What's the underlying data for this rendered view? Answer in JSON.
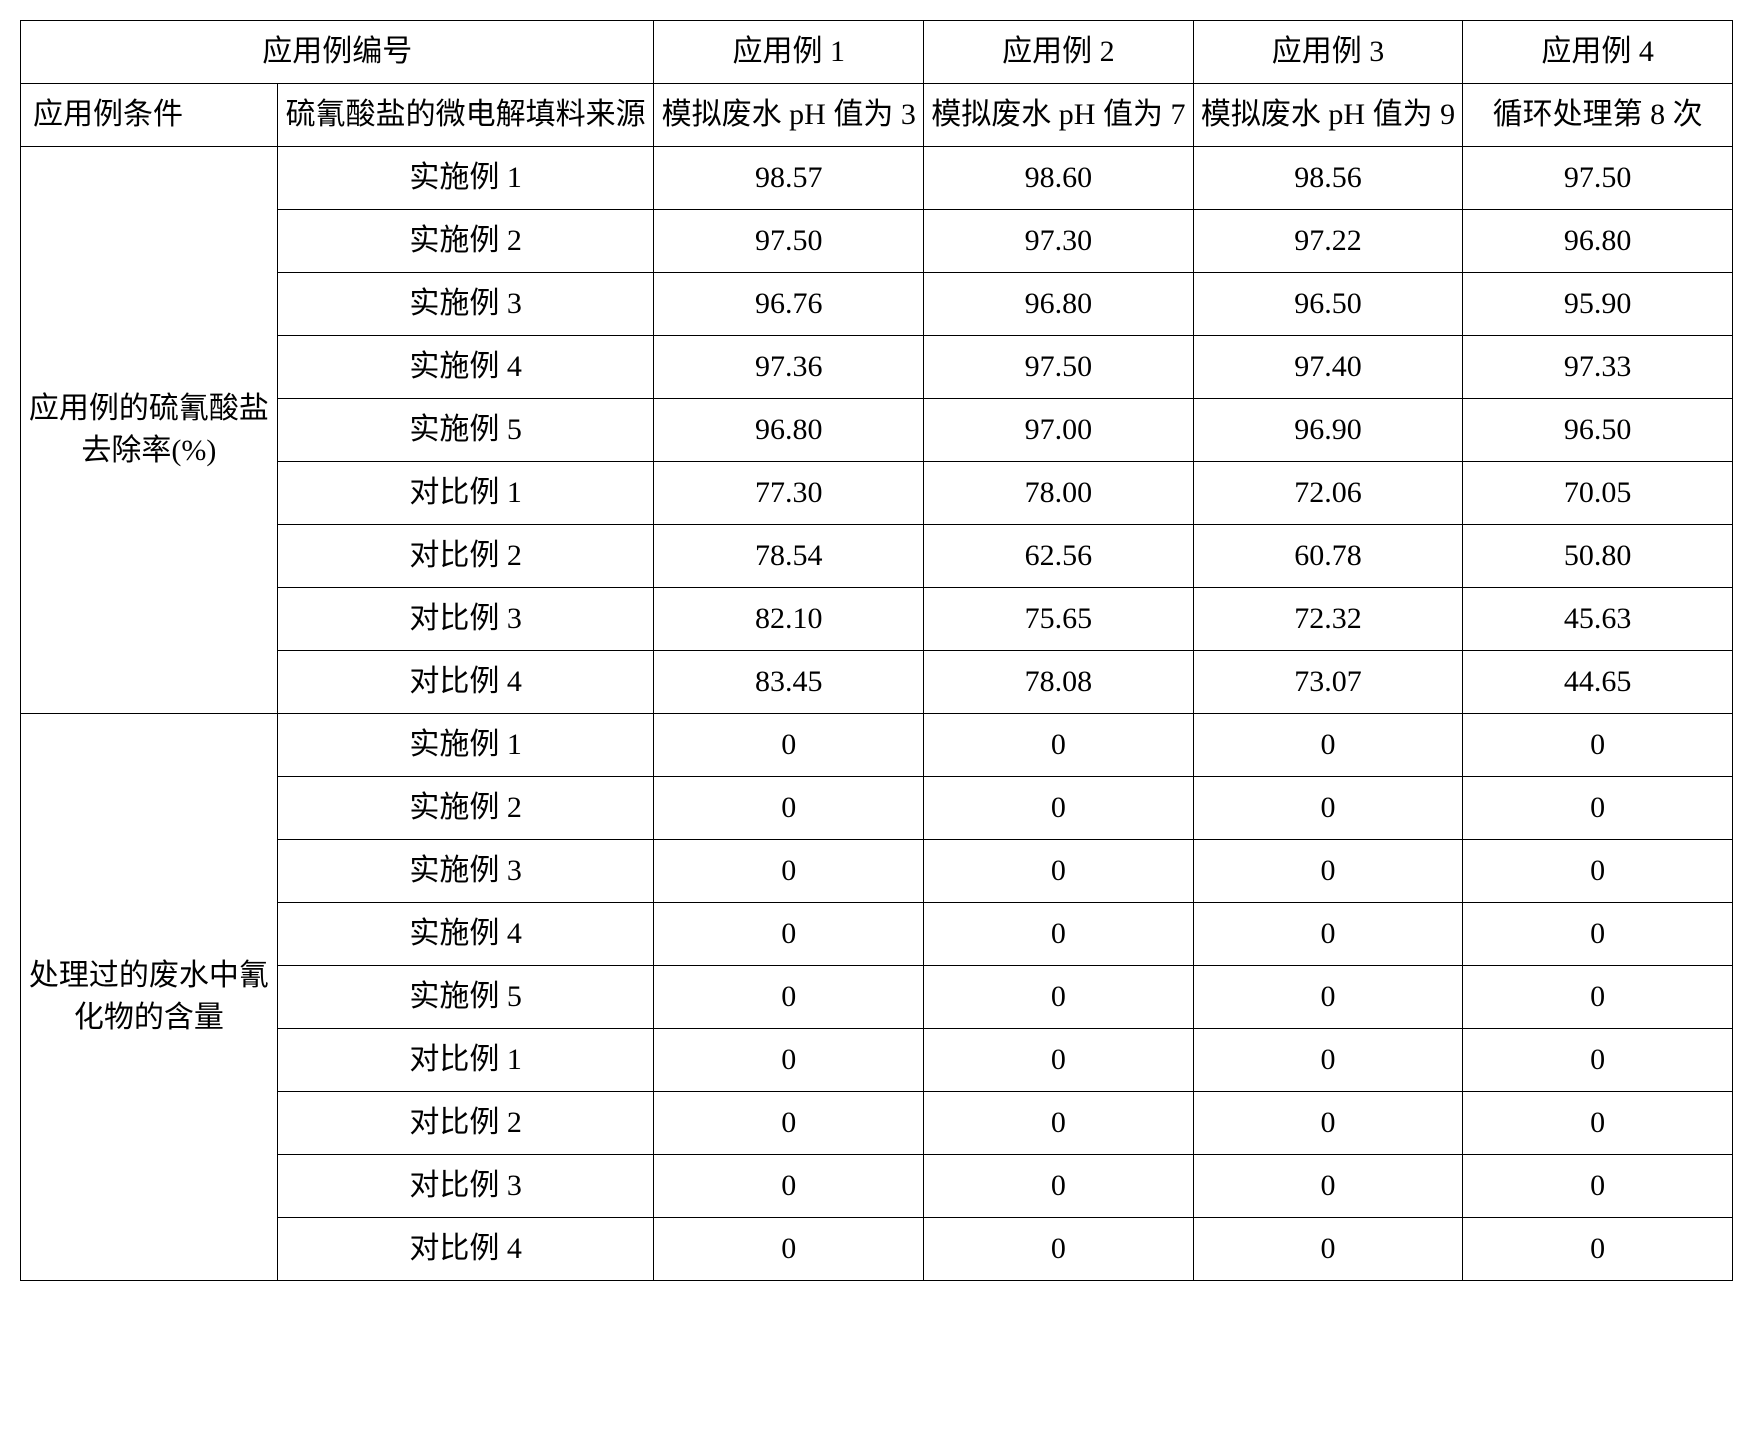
{
  "table": {
    "type": "table",
    "background_color": "#ffffff",
    "border_color": "#000000",
    "text_color": "#000000",
    "font_family": "SimSun",
    "cell_fontsize": 30,
    "header": {
      "title_merged": "应用例编号",
      "cols": [
        "应用例 1",
        "应用例 2",
        "应用例 3",
        "应用例 4"
      ]
    },
    "conditions": {
      "row_label": "应用例条件",
      "source_label": "硫氰酸盐的微电解填料来源",
      "values": [
        "模拟废水 pH 值为 3",
        "模拟废水 pH 值为 7",
        "模拟废水 pH 值为 9",
        "循环处理第 8 次"
      ]
    },
    "sections": [
      {
        "label": "应用例的硫氰酸盐去除率(%)",
        "rows": [
          {
            "name": "实施例 1",
            "v": [
              "98.57",
              "98.60",
              "98.56",
              "97.50"
            ]
          },
          {
            "name": "实施例 2",
            "v": [
              "97.50",
              "97.30",
              "97.22",
              "96.80"
            ]
          },
          {
            "name": "实施例 3",
            "v": [
              "96.76",
              "96.80",
              "96.50",
              "95.90"
            ]
          },
          {
            "name": "实施例 4",
            "v": [
              "97.36",
              "97.50",
              "97.40",
              "97.33"
            ]
          },
          {
            "name": "实施例 5",
            "v": [
              "96.80",
              "97.00",
              "96.90",
              "96.50"
            ]
          },
          {
            "name": "对比例 1",
            "v": [
              "77.30",
              "78.00",
              "72.06",
              "70.05"
            ]
          },
          {
            "name": "对比例 2",
            "v": [
              "78.54",
              "62.56",
              "60.78",
              "50.80"
            ]
          },
          {
            "name": "对比例 3",
            "v": [
              "82.10",
              "75.65",
              "72.32",
              "45.63"
            ]
          },
          {
            "name": "对比例 4",
            "v": [
              "83.45",
              "78.08",
              "73.07",
              "44.65"
            ]
          }
        ]
      },
      {
        "label": "处理过的废水中氰化物的含量",
        "rows": [
          {
            "name": "实施例 1",
            "v": [
              "0",
              "0",
              "0",
              "0"
            ]
          },
          {
            "name": "实施例 2",
            "v": [
              "0",
              "0",
              "0",
              "0"
            ]
          },
          {
            "name": "实施例 3",
            "v": [
              "0",
              "0",
              "0",
              "0"
            ]
          },
          {
            "name": "实施例 4",
            "v": [
              "0",
              "0",
              "0",
              "0"
            ]
          },
          {
            "name": "实施例 5",
            "v": [
              "0",
              "0",
              "0",
              "0"
            ]
          },
          {
            "name": "对比例 1",
            "v": [
              "0",
              "0",
              "0",
              "0"
            ]
          },
          {
            "name": "对比例 2",
            "v": [
              "0",
              "0",
              "0",
              "0"
            ]
          },
          {
            "name": "对比例 3",
            "v": [
              "0",
              "0",
              "0",
              "0"
            ]
          },
          {
            "name": "对比例 4",
            "v": [
              "0",
              "0",
              "0",
              "0"
            ]
          }
        ]
      }
    ]
  }
}
